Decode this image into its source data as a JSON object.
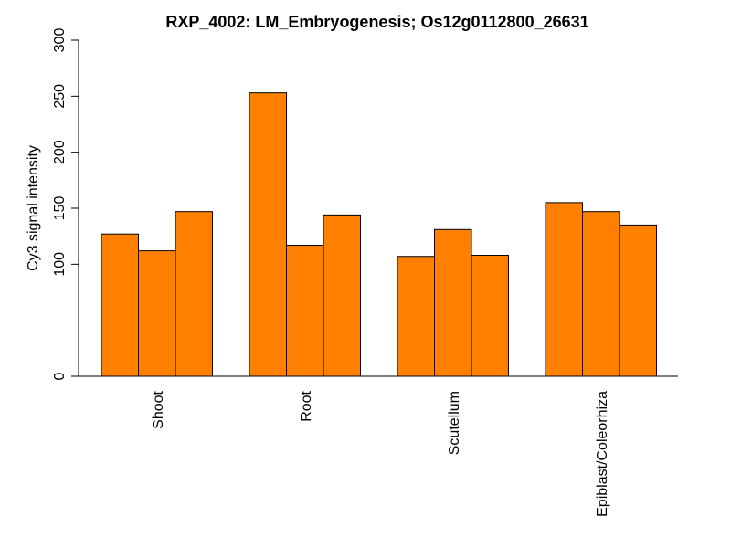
{
  "chart_data": {
    "type": "bar",
    "title": "RXP_4002: LM_Embryogenesis; Os12g0112800_26631",
    "ylabel": "Cy3 signal intensity",
    "xlabel": "",
    "ylim": [
      0,
      300
    ],
    "yticks": [
      0,
      100,
      150,
      200,
      250,
      300
    ],
    "bar_color": "#FF8000",
    "categories": [
      "Shoot",
      "Root",
      "Scutellum",
      "Epiblast/Coleorhiza"
    ],
    "values": [
      [
        127,
        112,
        147
      ],
      [
        253,
        117,
        144
      ],
      [
        107,
        131,
        108
      ],
      [
        155,
        147,
        135
      ]
    ]
  }
}
